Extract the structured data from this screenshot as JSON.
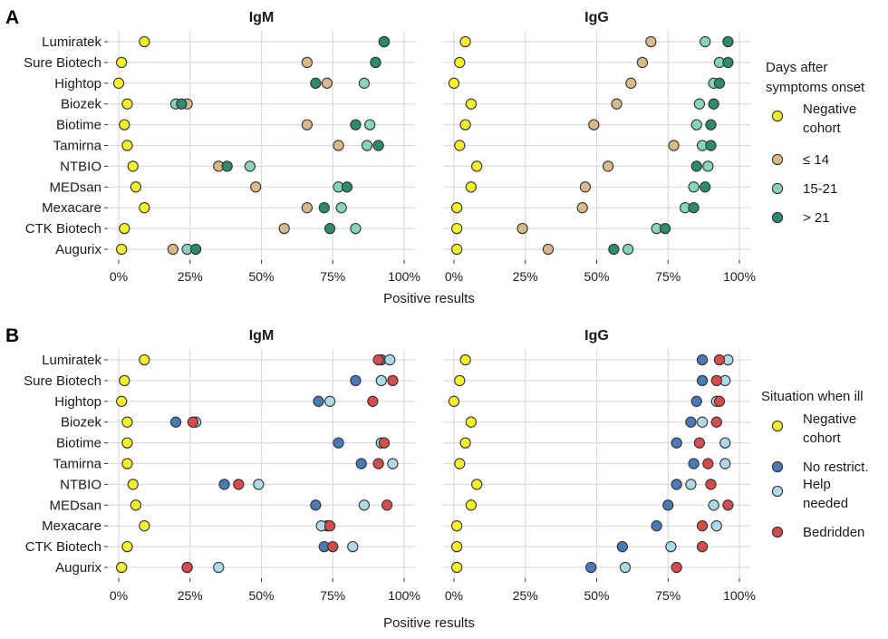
{
  "chart_data": [
    {
      "type": "scatter",
      "panel_label": "A",
      "facets": [
        "IgM",
        "IgG"
      ],
      "categories": [
        "Lumiratek",
        "Sure Biotech",
        "Hightop",
        "Biozek",
        "Biotime",
        "Tamirna",
        "NTBIO",
        "MEDsan",
        "Mexacare",
        "CTK Biotech",
        "Augurix"
      ],
      "xlabel": "Positive results",
      "xticks": [
        "0%",
        "25%",
        "50%",
        "75%",
        "100%"
      ],
      "xlim": [
        0,
        100
      ],
      "legend_title": "Days after symptoms onset",
      "legend_position": "right",
      "series": [
        {
          "name": "Negative cohort",
          "color": "#f5f02c",
          "IgM": [
            9,
            1,
            0,
            3,
            2,
            3,
            5,
            6,
            9,
            2,
            1
          ],
          "IgG": [
            4,
            2,
            0,
            6,
            4,
            2,
            8,
            6,
            1,
            1,
            1
          ]
        },
        {
          "name": "≤ 14",
          "color": "#d9b98a",
          "IgM": [
            93,
            66,
            73,
            24,
            66,
            77,
            35,
            48,
            66,
            58,
            19
          ],
          "IgG": [
            69,
            66,
            62,
            57,
            49,
            77,
            54,
            46,
            45,
            24,
            33
          ]
        },
        {
          "name": "15-21",
          "color": "#86d3c0",
          "IgM": [
            93,
            90,
            86,
            20,
            88,
            87,
            46,
            77,
            78,
            83,
            24
          ],
          "IgG": [
            88,
            93,
            91,
            86,
            85,
            87,
            89,
            84,
            81,
            71,
            61
          ]
        },
        {
          "name": "> 21",
          "color": "#2b8a6f",
          "IgM": [
            93,
            90,
            69,
            22,
            83,
            91,
            38,
            80,
            72,
            74,
            27
          ],
          "IgG": [
            96,
            96,
            93,
            91,
            90,
            90,
            85,
            88,
            84,
            74,
            56
          ]
        }
      ]
    },
    {
      "type": "scatter",
      "panel_label": "B",
      "facets": [
        "IgM",
        "IgG"
      ],
      "categories": [
        "Lumiratek",
        "Sure Biotech",
        "Hightop",
        "Biozek",
        "Biotime",
        "Tamirna",
        "NTBIO",
        "MEDsan",
        "Mexacare",
        "CTK Biotech",
        "Augurix"
      ],
      "xlabel": "Positive results",
      "xticks": [
        "0%",
        "25%",
        "50%",
        "75%",
        "100%"
      ],
      "xlim": [
        0,
        100
      ],
      "legend_title": "Situation when ill",
      "legend_position": "right",
      "series": [
        {
          "name": "Negative cohort",
          "color": "#f5f02c",
          "IgM": [
            9,
            2,
            1,
            3,
            3,
            3,
            5,
            6,
            9,
            3,
            1
          ],
          "IgG": [
            4,
            2,
            0,
            6,
            4,
            2,
            8,
            6,
            1,
            1,
            1
          ]
        },
        {
          "name": "No restrict.",
          "color": "#4a79b6",
          "IgM": [
            92,
            83,
            70,
            20,
            77,
            85,
            37,
            69,
            73,
            72,
            24
          ],
          "IgG": [
            87,
            87,
            85,
            83,
            78,
            84,
            78,
            75,
            71,
            59,
            48
          ]
        },
        {
          "name": "Help needed",
          "color": "#aed9e7",
          "IgM": [
            95,
            92,
            74,
            27,
            92,
            96,
            49,
            86,
            71,
            82,
            35
          ],
          "IgG": [
            96,
            95,
            92,
            87,
            95,
            95,
            83,
            91,
            92,
            76,
            60
          ]
        },
        {
          "name": "Bedridden",
          "color": "#d64b4b",
          "IgM": [
            91,
            96,
            89,
            26,
            93,
            91,
            42,
            94,
            74,
            75,
            24
          ],
          "IgG": [
            93,
            92,
            93,
            92,
            86,
            89,
            90,
            96,
            87,
            87,
            78
          ]
        }
      ]
    }
  ]
}
